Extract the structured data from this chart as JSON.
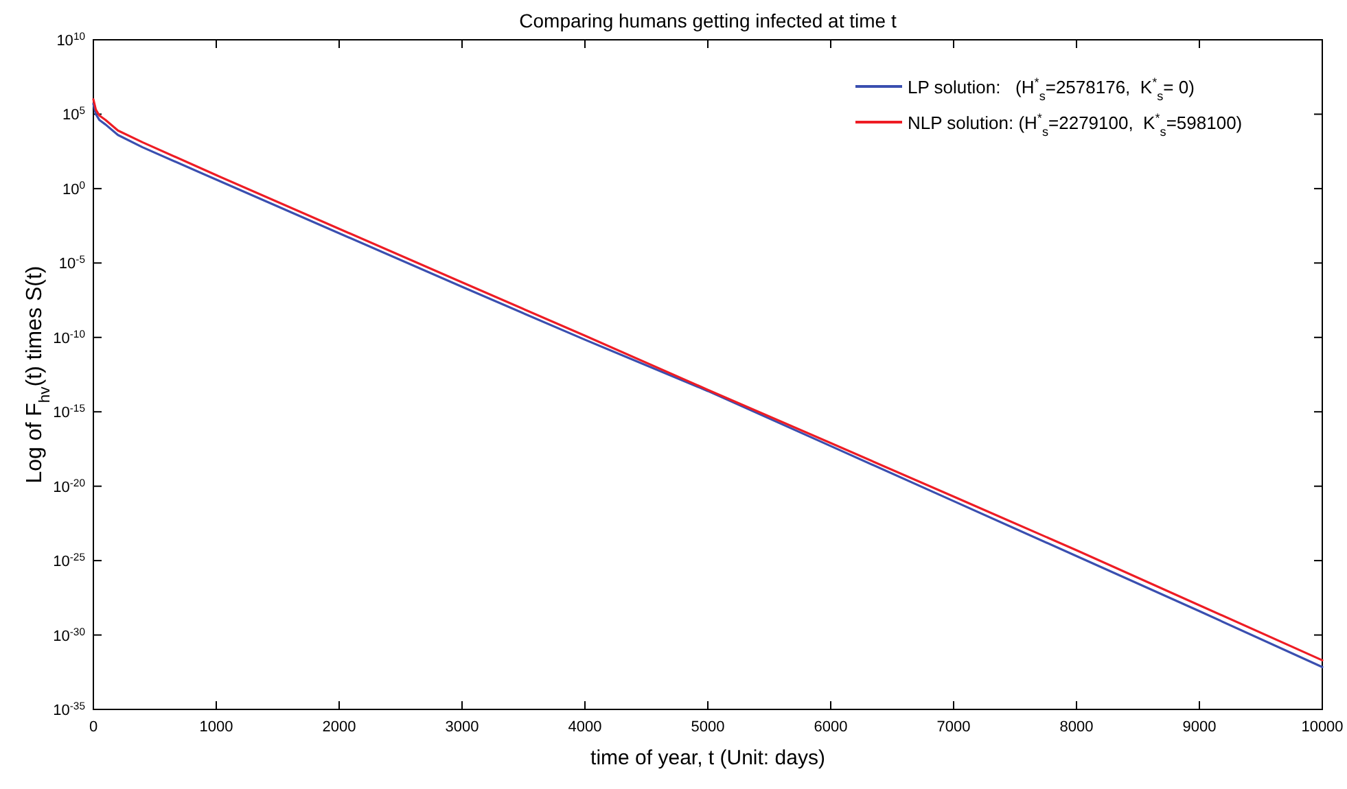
{
  "chart_data": {
    "type": "line",
    "title": "Comparing humans getting infected at time t",
    "xlabel": "time of year, t (Unit: days)",
    "ylabel": "Log of F$_{hv}$(t) times S(t)",
    "log": "y",
    "grid": false,
    "legend": "top right",
    "marker": "none",
    "line_style": "solid",
    "xlim": [
      0,
      10000
    ],
    "xticks": [
      0,
      1000,
      2000,
      3000,
      4000,
      5000,
      6000,
      7000,
      8000,
      9000,
      10000
    ],
    "ylim": [
      1e-35,
      10000000000.0
    ],
    "yticks": [
      {
        "value": 1e-35,
        "label": "10$^{-35}$"
      },
      {
        "value": 1e-30,
        "label": "10$^{-30}$"
      },
      {
        "value": 1e-25,
        "label": "10$^{-25}$"
      },
      {
        "value": 1e-20,
        "label": "10$^{-20}$"
      },
      {
        "value": 1e-15,
        "label": "10$^{-15}$"
      },
      {
        "value": 1e-10,
        "label": "10$^{-10}$"
      },
      {
        "value": 1e-05,
        "label": "10$^{-5}$"
      },
      {
        "value": 1,
        "label": "10$^{0}$"
      },
      {
        "value": 100000.0,
        "label": "10$^{5}$"
      },
      {
        "value": 10000000000.0,
        "label": "10$^{10}$"
      }
    ],
    "x": [
      0,
      20,
      50,
      100,
      200,
      400,
      1000,
      2000,
      3000,
      4000,
      5000,
      6000,
      7000,
      8000,
      9000,
      10000
    ],
    "series": [
      {
        "name": "LP solution:   (H$^{*}$$_{s}$=2578176,  K$^{*}$$_{s}$= 0)",
        "color": "#3a4fb0",
        "values": [
          500000.0,
          100000.0,
          40000.0,
          20000.0,
          4000.0,
          600.0,
          4,
          0.001,
          2.5e-07,
          7e-11,
          2.5e-14,
          5e-18,
          1e-21,
          2e-25,
          4e-29,
          7e-33
        ]
      },
      {
        "name": "NLP solution: (H$^{*}$$_{s}$=2279100,  K$^{*}$$_{s}$=598100)",
        "color": "#ee1c24",
        "values": [
          1000000.0,
          200000.0,
          80000.0,
          40000.0,
          8000.0,
          1300.0,
          8,
          0.002,
          5e-07,
          1.3e-10,
          3e-14,
          8e-18,
          2e-21,
          5e-25,
          1e-28,
          2e-32
        ]
      }
    ]
  }
}
